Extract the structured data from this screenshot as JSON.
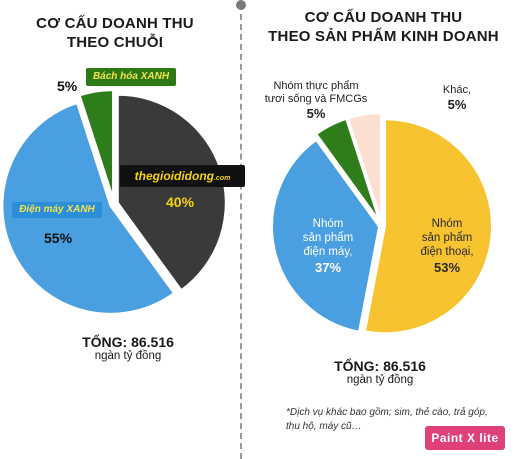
{
  "left": {
    "title_line1": "CƠ CẤU DOANH THU",
    "title_line2": "THEO CHUỖI",
    "total_label": "TỔNG: 86.516",
    "total_unit": "ngàn tỷ đồng",
    "labels": {
      "bhx_value": "5%",
      "tgdd_value": "40%",
      "dmx_value": "55%"
    },
    "logos": {
      "bhx": "Bách hóa XANH",
      "tgdd": "thegioididong",
      "tgdd_suffix": ".com",
      "dmx": "Điện máy XANH"
    }
  },
  "right": {
    "title_line1": "CƠ CẤU DOANH THU",
    "title_line2": "THEO SẢN PHẨM KINH DOANH",
    "total_label": "TỔNG: 86.516",
    "total_unit": "ngàn tỷ đồng",
    "labels": {
      "fmcg_line1": "Nhóm thực phẩm",
      "fmcg_line2": "tươi sống và FMCGs",
      "fmcg_value": "5%",
      "other_line1": "Khác,",
      "other_value": "5%",
      "appl_line1": "Nhóm",
      "appl_line2": "sản phẩm",
      "appl_line3": "điện máy,",
      "appl_value": "37%",
      "phone_line1": "Nhóm",
      "phone_line2": "sản phẩm",
      "phone_line3": "điện thoại,",
      "phone_value": "53%"
    },
    "note_line1": "*Dịch vụ khác bao gồm; sim, thẻ cào, trả góp,",
    "note_line2": "thu hộ, máy cũ…"
  },
  "watermark": "Paint X lite",
  "chart_data": [
    {
      "type": "pie",
      "title": "CƠ CẤU DOANH THU THEO CHUỖI",
      "categories": [
        "Bách hóa XANH",
        "thegioididong.com",
        "Điện máy XANH"
      ],
      "values": [
        5,
        40,
        55
      ],
      "colors": [
        "#2e7d1a",
        "#3a3a3a",
        "#4a9fe0"
      ],
      "exploded": true
    },
    {
      "type": "pie",
      "title": "CƠ CẤU DOANH THU THEO SẢN PHẨM KINH DOANH",
      "categories": [
        "Nhóm sản phẩm điện thoại",
        "Nhóm sản phẩm điện máy",
        "Nhóm thực phẩm tươi sống và FMCGs",
        "Khác"
      ],
      "values": [
        53,
        37,
        5,
        5
      ],
      "colors": [
        "#f8c331",
        "#4a9fe0",
        "#2e7d1a",
        "#fbe0d2"
      ],
      "exploded": true
    }
  ]
}
